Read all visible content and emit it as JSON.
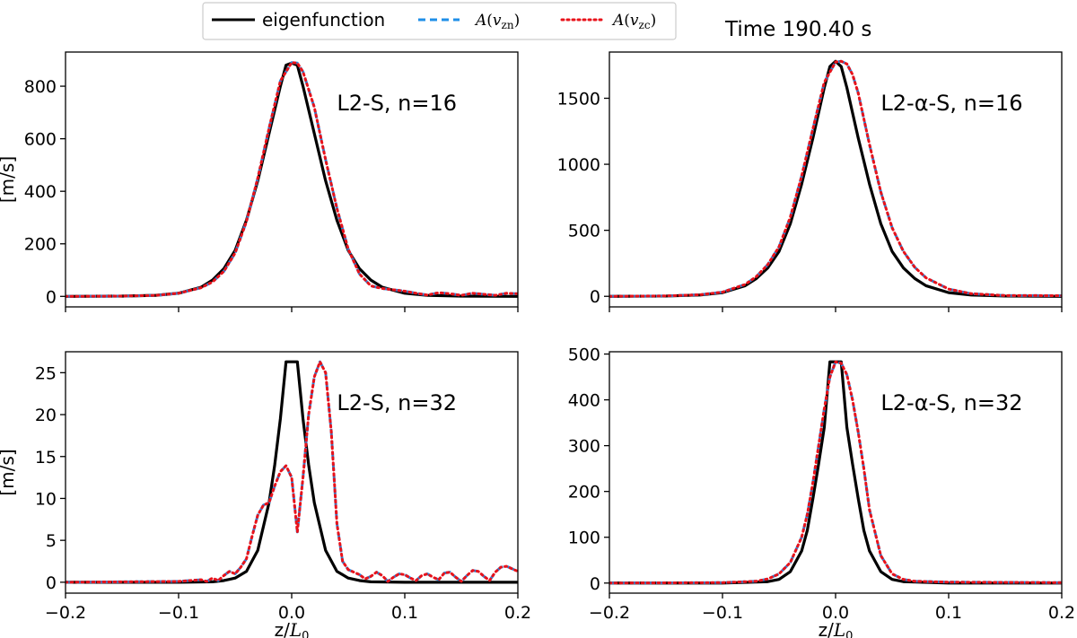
{
  "header": {
    "time_label": "Time 190.40 s"
  },
  "legend": {
    "entries": [
      {
        "label": "eigenfunction",
        "color": "#000000",
        "style": "solid"
      },
      {
        "label": "A(v_zn)",
        "sym": "A",
        "open": "(",
        "var": "v",
        "sub": "zn",
        "close": ")",
        "color": "#1f8fe8",
        "style": "dashed"
      },
      {
        "label": "A(v_zc)",
        "sym": "A",
        "open": "(",
        "var": "v",
        "sub": "zc",
        "close": ")",
        "color": "#e8121a",
        "style": "dotted"
      }
    ]
  },
  "xaxis": {
    "label_main": "z/",
    "label_L": "L",
    "label_sub": "0"
  },
  "yaxis": {
    "label": "[m/s]"
  },
  "chart_data": [
    {
      "type": "line",
      "panel": "top-left",
      "title": "L2-S, n=16",
      "xlim": [
        -0.2,
        0.2
      ],
      "ylim": [
        -40,
        930
      ],
      "xticks": [
        -0.2,
        -0.1,
        0.0,
        0.1,
        0.2
      ],
      "xticklabels": [
        "",
        "",
        "",
        "",
        ""
      ],
      "yticks": [
        0,
        200,
        400,
        600,
        800
      ],
      "yticklabels": [
        "0",
        "200",
        "400",
        "600",
        "800"
      ],
      "ylabel": "[m/s]",
      "xlabel": "",
      "series": [
        {
          "name": "eigenfunction",
          "color": "#000000",
          "style": "solid",
          "x": [
            -0.2,
            -0.15,
            -0.12,
            -0.1,
            -0.08,
            -0.07,
            -0.06,
            -0.05,
            -0.04,
            -0.03,
            -0.02,
            -0.01,
            -0.005,
            0,
            0.005,
            0.01,
            0.02,
            0.03,
            0.04,
            0.05,
            0.06,
            0.07,
            0.08,
            0.1,
            0.12,
            0.15,
            0.2
          ],
          "y": [
            0,
            1,
            4,
            12,
            35,
            62,
            105,
            175,
            290,
            440,
            620,
            800,
            880,
            888,
            880,
            800,
            620,
            440,
            290,
            175,
            105,
            62,
            35,
            12,
            4,
            1,
            0
          ]
        },
        {
          "name": "A(v_zn)",
          "color": "#1f8fe8",
          "style": "dashed",
          "x": [
            -0.2,
            -0.15,
            -0.12,
            -0.1,
            -0.08,
            -0.07,
            -0.06,
            -0.05,
            -0.04,
            -0.03,
            -0.02,
            -0.01,
            0,
            0.005,
            0.01,
            0.02,
            0.03,
            0.04,
            0.05,
            0.06,
            0.07,
            0.08,
            0.09,
            0.1,
            0.11,
            0.12,
            0.13,
            0.14,
            0.15,
            0.16,
            0.17,
            0.18,
            0.19,
            0.2
          ],
          "y": [
            0,
            1,
            4,
            12,
            33,
            55,
            95,
            165,
            285,
            450,
            640,
            820,
            890,
            888,
            855,
            720,
            520,
            335,
            180,
            85,
            40,
            30,
            25,
            20,
            12,
            5,
            14,
            10,
            4,
            12,
            8,
            4,
            12,
            10
          ]
        },
        {
          "name": "A(v_zc)",
          "color": "#e8121a",
          "style": "dotted",
          "x": [
            -0.2,
            -0.15,
            -0.12,
            -0.1,
            -0.08,
            -0.07,
            -0.06,
            -0.05,
            -0.04,
            -0.03,
            -0.02,
            -0.01,
            0,
            0.005,
            0.01,
            0.02,
            0.03,
            0.04,
            0.05,
            0.06,
            0.07,
            0.08,
            0.09,
            0.1,
            0.11,
            0.12,
            0.13,
            0.14,
            0.15,
            0.16,
            0.17,
            0.18,
            0.19,
            0.2
          ],
          "y": [
            0,
            1,
            4,
            12,
            33,
            55,
            95,
            165,
            285,
            450,
            640,
            820,
            890,
            888,
            855,
            720,
            520,
            335,
            180,
            85,
            40,
            30,
            25,
            20,
            12,
            5,
            14,
            10,
            4,
            12,
            8,
            4,
            12,
            10
          ]
        }
      ]
    },
    {
      "type": "line",
      "panel": "top-right",
      "title": "L2-α-S, n=16",
      "xlim": [
        -0.2,
        0.2
      ],
      "ylim": [
        -80,
        1850
      ],
      "xticks": [
        -0.2,
        -0.1,
        0.0,
        0.1,
        0.2
      ],
      "xticklabels": [
        "",
        "",
        "",
        "",
        ""
      ],
      "yticks": [
        0,
        500,
        1000,
        1500
      ],
      "yticklabels": [
        "0",
        "500",
        "1000",
        "1500"
      ],
      "ylabel": "",
      "xlabel": "",
      "series": [
        {
          "name": "eigenfunction",
          "color": "#000000",
          "style": "solid",
          "x": [
            -0.2,
            -0.15,
            -0.12,
            -0.1,
            -0.08,
            -0.07,
            -0.06,
            -0.05,
            -0.04,
            -0.03,
            -0.02,
            -0.01,
            -0.005,
            0,
            0.005,
            0.01,
            0.02,
            0.03,
            0.04,
            0.05,
            0.06,
            0.07,
            0.08,
            0.1,
            0.12,
            0.15,
            0.2
          ],
          "y": [
            0,
            2,
            10,
            28,
            80,
            135,
            215,
            340,
            550,
            850,
            1200,
            1580,
            1740,
            1780,
            1740,
            1580,
            1200,
            850,
            550,
            340,
            215,
            135,
            80,
            28,
            10,
            2,
            0
          ]
        },
        {
          "name": "A(v_zn)",
          "color": "#1f8fe8",
          "style": "dashed",
          "x": [
            -0.2,
            -0.15,
            -0.12,
            -0.1,
            -0.08,
            -0.07,
            -0.06,
            -0.05,
            -0.04,
            -0.03,
            -0.02,
            -0.01,
            0,
            0.005,
            0.01,
            0.015,
            0.02,
            0.03,
            0.04,
            0.05,
            0.06,
            0.07,
            0.08,
            0.1,
            0.12,
            0.15,
            0.2
          ],
          "y": [
            0,
            3,
            12,
            32,
            90,
            150,
            240,
            375,
            600,
            910,
            1270,
            1620,
            1775,
            1780,
            1760,
            1680,
            1540,
            1150,
            790,
            520,
            340,
            220,
            140,
            55,
            20,
            6,
            5
          ]
        },
        {
          "name": "A(v_zc)",
          "color": "#e8121a",
          "style": "dotted",
          "x": [
            -0.2,
            -0.15,
            -0.12,
            -0.1,
            -0.08,
            -0.07,
            -0.06,
            -0.05,
            -0.04,
            -0.03,
            -0.02,
            -0.01,
            0,
            0.005,
            0.01,
            0.015,
            0.02,
            0.03,
            0.04,
            0.05,
            0.06,
            0.07,
            0.08,
            0.1,
            0.12,
            0.15,
            0.2
          ],
          "y": [
            0,
            3,
            12,
            32,
            90,
            150,
            240,
            375,
            600,
            910,
            1270,
            1620,
            1775,
            1780,
            1760,
            1680,
            1540,
            1150,
            790,
            520,
            340,
            220,
            140,
            55,
            20,
            6,
            5
          ]
        }
      ]
    },
    {
      "type": "line",
      "panel": "bottom-left",
      "title": "L2-S, n=32",
      "xlim": [
        -0.2,
        0.2
      ],
      "ylim": [
        -1.3,
        27.5
      ],
      "xticks": [
        -0.2,
        -0.1,
        0.0,
        0.1,
        0.2
      ],
      "xticklabels": [
        "−0.2",
        "−0.1",
        "0.0",
        "0.1",
        "0.2"
      ],
      "yticks": [
        0,
        5,
        10,
        15,
        20,
        25
      ],
      "yticklabels": [
        "0",
        "5",
        "10",
        "15",
        "20",
        "25"
      ],
      "ylabel": "[m/s]",
      "xlabel": "z/L0",
      "series": [
        {
          "name": "eigenfunction",
          "color": "#000000",
          "style": "solid",
          "x": [
            -0.2,
            -0.1,
            -0.07,
            -0.06,
            -0.05,
            -0.04,
            -0.03,
            -0.02,
            -0.015,
            -0.01,
            -0.005,
            0,
            0.005,
            0.01,
            0.015,
            0.02,
            0.03,
            0.04,
            0.05,
            0.06,
            0.07,
            0.1,
            0.2
          ],
          "y": [
            0,
            0,
            0.05,
            0.2,
            0.5,
            1.3,
            3.8,
            9.5,
            14,
            19.5,
            26.3,
            26.3,
            26.3,
            19.5,
            14,
            9.5,
            3.8,
            1.3,
            0.5,
            0.2,
            0.05,
            0,
            0
          ]
        },
        {
          "name": "A(v_zn)",
          "color": "#1f8fe8",
          "style": "dashed",
          "x": [
            -0.2,
            -0.1,
            -0.09,
            -0.08,
            -0.075,
            -0.07,
            -0.065,
            -0.06,
            -0.055,
            -0.05,
            -0.045,
            -0.04,
            -0.035,
            -0.03,
            -0.025,
            -0.02,
            -0.015,
            -0.01,
            -0.005,
            0,
            0.005,
            0.01,
            0.015,
            0.02,
            0.025,
            0.03,
            0.035,
            0.04,
            0.045,
            0.05,
            0.055,
            0.06,
            0.065,
            0.07,
            0.075,
            0.08,
            0.085,
            0.09,
            0.095,
            0.1,
            0.105,
            0.11,
            0.115,
            0.12,
            0.125,
            0.13,
            0.135,
            0.14,
            0.145,
            0.15,
            0.155,
            0.16,
            0.165,
            0.17,
            0.175,
            0.18,
            0.185,
            0.19,
            0.195,
            0.2
          ],
          "y": [
            0,
            0.1,
            0.2,
            0.3,
            0.1,
            0.5,
            0.2,
            0.8,
            1.3,
            1.0,
            1.8,
            2.8,
            5.5,
            8.0,
            9.2,
            9.5,
            11.5,
            13.2,
            13.9,
            12.5,
            6.0,
            12.5,
            20.0,
            24.5,
            26.3,
            25.0,
            18.0,
            7.0,
            2.5,
            1.5,
            1.2,
            0.9,
            0.4,
            0.7,
            1.2,
            0.8,
            0.1,
            0.6,
            1.0,
            0.9,
            0.5,
            0.2,
            0.8,
            1.0,
            0.6,
            0.3,
            1.1,
            1.2,
            0.6,
            0.1,
            0.8,
            1.4,
            1.3,
            0.7,
            0.2,
            1.2,
            1.8,
            1.9,
            1.6,
            1.3
          ]
        },
        {
          "name": "A(v_zc)",
          "color": "#e8121a",
          "style": "dotted",
          "x": [
            -0.2,
            -0.1,
            -0.09,
            -0.08,
            -0.075,
            -0.07,
            -0.065,
            -0.06,
            -0.055,
            -0.05,
            -0.045,
            -0.04,
            -0.035,
            -0.03,
            -0.025,
            -0.02,
            -0.015,
            -0.01,
            -0.005,
            0,
            0.005,
            0.01,
            0.015,
            0.02,
            0.025,
            0.03,
            0.035,
            0.04,
            0.045,
            0.05,
            0.055,
            0.06,
            0.065,
            0.07,
            0.075,
            0.08,
            0.085,
            0.09,
            0.095,
            0.1,
            0.105,
            0.11,
            0.115,
            0.12,
            0.125,
            0.13,
            0.135,
            0.14,
            0.145,
            0.15,
            0.155,
            0.16,
            0.165,
            0.17,
            0.175,
            0.18,
            0.185,
            0.19,
            0.195,
            0.2
          ],
          "y": [
            0,
            0.1,
            0.2,
            0.3,
            0.1,
            0.5,
            0.2,
            0.8,
            1.3,
            1.0,
            1.8,
            2.8,
            5.5,
            8.0,
            9.2,
            9.5,
            11.5,
            13.2,
            13.9,
            12.5,
            6.0,
            12.5,
            20.0,
            24.5,
            26.3,
            25.0,
            18.0,
            7.0,
            2.5,
            1.5,
            1.2,
            0.9,
            0.4,
            0.7,
            1.2,
            0.8,
            0.1,
            0.6,
            1.0,
            0.9,
            0.5,
            0.2,
            0.8,
            1.0,
            0.6,
            0.3,
            1.1,
            1.2,
            0.6,
            0.1,
            0.8,
            1.4,
            1.3,
            0.7,
            0.2,
            1.2,
            1.8,
            1.9,
            1.6,
            1.3
          ]
        }
      ]
    },
    {
      "type": "line",
      "panel": "bottom-right",
      "title": "L2-α-S, n=32",
      "xlim": [
        -0.2,
        0.2
      ],
      "ylim": [
        -22,
        505
      ],
      "xticks": [
        -0.2,
        -0.1,
        0.0,
        0.1,
        0.2
      ],
      "xticklabels": [
        "−0.2",
        "−0.1",
        "0.0",
        "0.1",
        "0.2"
      ],
      "yticks": [
        0,
        100,
        200,
        300,
        400,
        500
      ],
      "yticklabels": [
        "0",
        "100",
        "200",
        "300",
        "400",
        "500"
      ],
      "ylabel": "",
      "xlabel": "z/L0",
      "series": [
        {
          "name": "eigenfunction",
          "color": "#000000",
          "style": "solid",
          "x": [
            -0.2,
            -0.1,
            -0.06,
            -0.05,
            -0.04,
            -0.03,
            -0.025,
            -0.02,
            -0.015,
            -0.01,
            -0.005,
            0,
            0.005,
            0.01,
            0.015,
            0.02,
            0.025,
            0.03,
            0.04,
            0.05,
            0.06,
            0.1,
            0.2
          ],
          "y": [
            0,
            0,
            3,
            8,
            25,
            70,
            115,
            185,
            260,
            340,
            483,
            483,
            483,
            340,
            260,
            185,
            115,
            70,
            25,
            8,
            3,
            0,
            0
          ]
        },
        {
          "name": "A(v_zn)",
          "color": "#1f8fe8",
          "style": "dashed",
          "x": [
            -0.2,
            -0.1,
            -0.07,
            -0.06,
            -0.05,
            -0.04,
            -0.03,
            -0.025,
            -0.02,
            -0.015,
            -0.01,
            -0.005,
            0,
            0.005,
            0.01,
            0.015,
            0.02,
            0.025,
            0.03,
            0.04,
            0.05,
            0.06,
            0.07,
            0.1,
            0.2
          ],
          "y": [
            0,
            1,
            4,
            9,
            20,
            45,
            100,
            150,
            220,
            300,
            380,
            450,
            483,
            480,
            455,
            400,
            330,
            250,
            160,
            60,
            20,
            8,
            4,
            2,
            1
          ]
        },
        {
          "name": "A(v_zc)",
          "color": "#e8121a",
          "style": "dotted",
          "x": [
            -0.2,
            -0.1,
            -0.07,
            -0.06,
            -0.05,
            -0.04,
            -0.03,
            -0.025,
            -0.02,
            -0.015,
            -0.01,
            -0.005,
            0,
            0.005,
            0.01,
            0.015,
            0.02,
            0.025,
            0.03,
            0.04,
            0.05,
            0.06,
            0.07,
            0.1,
            0.2
          ],
          "y": [
            0,
            1,
            4,
            9,
            20,
            45,
            100,
            150,
            220,
            300,
            380,
            450,
            483,
            480,
            455,
            400,
            330,
            250,
            160,
            60,
            20,
            8,
            4,
            2,
            1
          ]
        }
      ]
    }
  ]
}
